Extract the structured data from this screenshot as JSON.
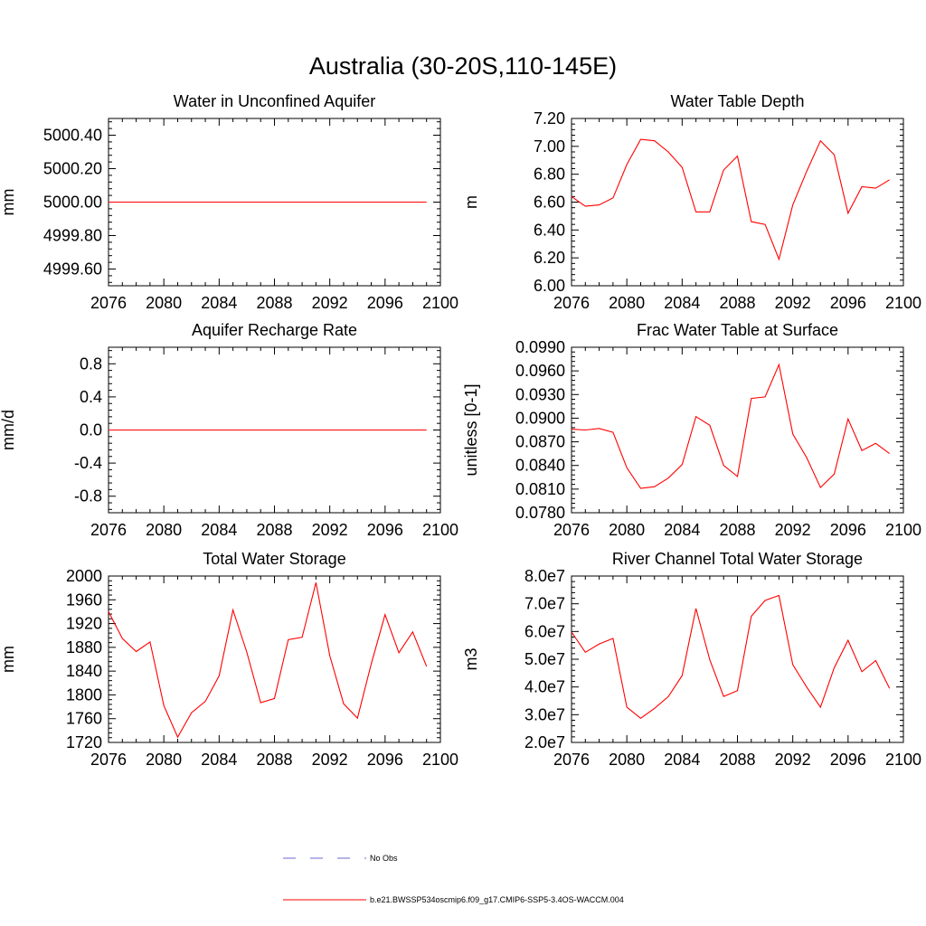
{
  "figure": {
    "title": "Australia (30-20S,110-145E)"
  },
  "legend": {
    "entries": [
      {
        "label": "No Obs",
        "color": "#6a6ad0",
        "style": "dashed"
      },
      {
        "label": "b.e21.BWSSP534oscmip6.f09_g17.CMIP6-SSP5-3.4OS-WACCM.004",
        "color": "#ff0000",
        "style": "solid"
      }
    ]
  },
  "chart_data": [
    {
      "type": "line",
      "title": "Water in Unconfined Aquifer",
      "ylabel": "mm",
      "xlim": [
        2076,
        2100
      ],
      "ylim": [
        4999.5,
        5000.5
      ],
      "xticks": [
        2076,
        2080,
        2084,
        2088,
        2092,
        2096,
        2100
      ],
      "yticks": [
        4999.6,
        4999.8,
        5000.0,
        5000.2,
        5000.4
      ],
      "ytick_labels": [
        "4999.60",
        "4999.80",
        "5000.00",
        "5000.20",
        "5000.40"
      ],
      "x": [
        2076,
        2077,
        2078,
        2079,
        2080,
        2081,
        2082,
        2083,
        2084,
        2085,
        2086,
        2087,
        2088,
        2089,
        2090,
        2091,
        2092,
        2093,
        2094,
        2095,
        2096,
        2097,
        2098,
        2099
      ],
      "series": [
        {
          "color": "#ff0000",
          "values": [
            5000,
            5000,
            5000,
            5000,
            5000,
            5000,
            5000,
            5000,
            5000,
            5000,
            5000,
            5000,
            5000,
            5000,
            5000,
            5000,
            5000,
            5000,
            5000,
            5000,
            5000,
            5000,
            5000,
            5000
          ]
        }
      ]
    },
    {
      "type": "line",
      "title": "Water Table Depth",
      "ylabel": "m",
      "xlim": [
        2076,
        2100
      ],
      "ylim": [
        6.0,
        7.2
      ],
      "xticks": [
        2076,
        2080,
        2084,
        2088,
        2092,
        2096,
        2100
      ],
      "yticks": [
        6.0,
        6.2,
        6.4,
        6.6,
        6.8,
        7.0,
        7.2
      ],
      "ytick_labels": [
        "6.00",
        "6.20",
        "6.40",
        "6.60",
        "6.80",
        "7.00",
        "7.20"
      ],
      "x": [
        2076,
        2077,
        2078,
        2079,
        2080,
        2081,
        2082,
        2083,
        2084,
        2085,
        2086,
        2087,
        2088,
        2089,
        2090,
        2091,
        2092,
        2093,
        2094,
        2095,
        2096,
        2097,
        2098,
        2099
      ],
      "series": [
        {
          "color": "#ff0000",
          "values": [
            6.64,
            6.57,
            6.58,
            6.63,
            6.87,
            7.05,
            7.04,
            6.96,
            6.85,
            6.53,
            6.53,
            6.83,
            6.93,
            6.46,
            6.44,
            6.19,
            6.58,
            6.82,
            7.04,
            6.94,
            6.52,
            6.71,
            6.7,
            6.76
          ]
        }
      ]
    },
    {
      "type": "line",
      "title": "Aquifer Recharge Rate",
      "ylabel": "mm/d",
      "xlim": [
        2076,
        2100
      ],
      "ylim": [
        -1.0,
        1.0
      ],
      "xticks": [
        2076,
        2080,
        2084,
        2088,
        2092,
        2096,
        2100
      ],
      "yticks": [
        -0.8,
        -0.4,
        0.0,
        0.4,
        0.8
      ],
      "ytick_labels": [
        "-0.8",
        "-0.4",
        "0.0",
        "0.4",
        "0.8"
      ],
      "x": [
        2076,
        2077,
        2078,
        2079,
        2080,
        2081,
        2082,
        2083,
        2084,
        2085,
        2086,
        2087,
        2088,
        2089,
        2090,
        2091,
        2092,
        2093,
        2094,
        2095,
        2096,
        2097,
        2098,
        2099
      ],
      "series": [
        {
          "color": "#ff0000",
          "values": [
            0,
            0,
            0,
            0,
            0,
            0,
            0,
            0,
            0,
            0,
            0,
            0,
            0,
            0,
            0,
            0,
            0,
            0,
            0,
            0,
            0,
            0,
            0,
            0
          ]
        }
      ]
    },
    {
      "type": "line",
      "title": "Frac Water Table at Surface",
      "ylabel": "unitless [0-1]",
      "xlim": [
        2076,
        2100
      ],
      "ylim": [
        0.078,
        0.099
      ],
      "xticks": [
        2076,
        2080,
        2084,
        2088,
        2092,
        2096,
        2100
      ],
      "yticks": [
        0.078,
        0.081,
        0.084,
        0.087,
        0.09,
        0.093,
        0.096,
        0.099
      ],
      "ytick_labels": [
        "0.0780",
        "0.0810",
        "0.0840",
        "0.0870",
        "0.0900",
        "0.0930",
        "0.0960",
        "0.0990"
      ],
      "x": [
        2076,
        2077,
        2078,
        2079,
        2080,
        2081,
        2082,
        2083,
        2084,
        2085,
        2086,
        2087,
        2088,
        2089,
        2090,
        2091,
        2092,
        2093,
        2094,
        2095,
        2096,
        2097,
        2098,
        2099
      ],
      "series": [
        {
          "color": "#ff0000",
          "values": [
            0.0886,
            0.0885,
            0.0887,
            0.0882,
            0.0837,
            0.0811,
            0.0813,
            0.0824,
            0.0841,
            0.0902,
            0.0891,
            0.084,
            0.0826,
            0.0925,
            0.0927,
            0.0968,
            0.088,
            0.085,
            0.0812,
            0.0829,
            0.0899,
            0.0859,
            0.0868,
            0.0855
          ]
        }
      ]
    },
    {
      "type": "line",
      "title": "Total Water Storage",
      "ylabel": "mm",
      "xlim": [
        2076,
        2100
      ],
      "ylim": [
        1720,
        2000
      ],
      "xticks": [
        2076,
        2080,
        2084,
        2088,
        2092,
        2096,
        2100
      ],
      "yticks": [
        1720,
        1760,
        1800,
        1840,
        1880,
        1920,
        1960,
        2000
      ],
      "ytick_labels": [
        "1720",
        "1760",
        "1800",
        "1840",
        "1880",
        "1920",
        "1960",
        "2000"
      ],
      "x": [
        2076,
        2077,
        2078,
        2079,
        2080,
        2081,
        2082,
        2083,
        2084,
        2085,
        2086,
        2087,
        2088,
        2089,
        2090,
        2091,
        2092,
        2093,
        2094,
        2095,
        2096,
        2097,
        2098,
        2099
      ],
      "series": [
        {
          "color": "#ff0000",
          "values": [
            1940,
            1895,
            1873,
            1889,
            1782,
            1729,
            1770,
            1789,
            1832,
            1943,
            1872,
            1787,
            1794,
            1893,
            1897,
            1989,
            1866,
            1785,
            1761,
            1852,
            1935,
            1871,
            1906,
            1848
          ]
        }
      ]
    },
    {
      "type": "line",
      "title": "River Channel Total Water Storage",
      "ylabel": "m3",
      "xlim": [
        2076,
        2100
      ],
      "ylim": [
        20000000,
        80000000
      ],
      "xticks": [
        2076,
        2080,
        2084,
        2088,
        2092,
        2096,
        2100
      ],
      "yticks": [
        20000000,
        30000000,
        40000000,
        50000000,
        60000000,
        70000000,
        80000000
      ],
      "ytick_labels": [
        "2.0e7",
        "3.0e7",
        "4.0e7",
        "5.0e7",
        "6.0e7",
        "7.0e7",
        "8.0e7"
      ],
      "x": [
        2076,
        2077,
        2078,
        2079,
        2080,
        2081,
        2082,
        2083,
        2084,
        2085,
        2086,
        2087,
        2088,
        2089,
        2090,
        2091,
        2092,
        2093,
        2094,
        2095,
        2096,
        2097,
        2098,
        2099
      ],
      "series": [
        {
          "color": "#ff0000",
          "values": [
            59800000,
            52500000,
            55500000,
            57500000,
            32700000,
            28700000,
            32300000,
            36500000,
            44100000,
            68300000,
            49800000,
            36600000,
            38700000,
            65500000,
            71200000,
            73000000,
            48000000,
            40000000,
            32700000,
            46900000,
            56800000,
            45500000,
            49500000,
            39500000
          ]
        }
      ]
    }
  ]
}
